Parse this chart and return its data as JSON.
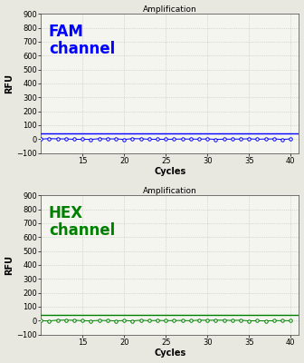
{
  "title": "Amplification",
  "xlabel": "Cycles",
  "ylabel": "RFU",
  "ylim": [
    -100,
    900
  ],
  "yticks": [
    -100,
    0,
    100,
    200,
    300,
    400,
    500,
    600,
    700,
    800,
    900
  ],
  "xlim": [
    10,
    41
  ],
  "xticks": [
    15,
    20,
    25,
    30,
    35,
    40
  ],
  "fam_label": "FAM\nchannel",
  "fam_color": "#0000FF",
  "hex_label": "HEX\nchannel",
  "hex_color": "#008000",
  "threshold_fam": 40,
  "threshold_hex": 40,
  "background_color": "#f5f5f0",
  "fig_background": "#e8e8e0",
  "grid_color": "#bbbbbb",
  "n_cycles_start": 10,
  "n_cycles_end": 40,
  "title_fontsize": 6.5,
  "label_fontsize": 7,
  "tick_fontsize": 6,
  "channel_fontsize": 12
}
